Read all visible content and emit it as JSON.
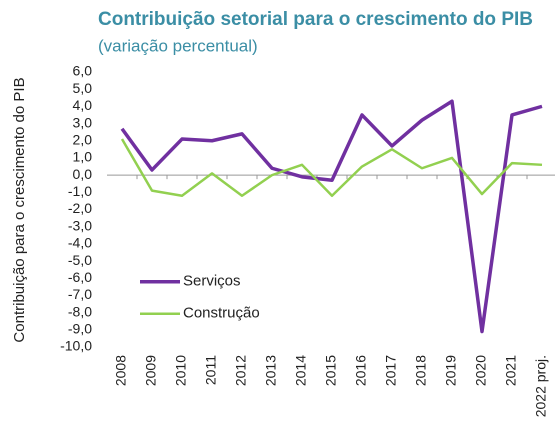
{
  "chart_data": {
    "type": "line",
    "title": "Contribuição setorial para o crescimento do PIB",
    "subtitle": "(variação percentual)",
    "y_label": "Contribuição para o crescimento do PIB",
    "categories": [
      "2008",
      "2009",
      "2010",
      "2011",
      "2012",
      "2013",
      "2014",
      "2015",
      "2016",
      "2017",
      "2018",
      "2019",
      "2020",
      "2021",
      "2022 proj."
    ],
    "series": [
      {
        "name": "Serviços",
        "color": "#7030a0",
        "values": [
          2.7,
          0.3,
          2.1,
          2.0,
          2.4,
          0.4,
          -0.1,
          -0.3,
          3.5,
          1.7,
          3.2,
          4.3,
          -9.1,
          3.5,
          4.0
        ]
      },
      {
        "name": "Construção",
        "color": "#92d050",
        "values": [
          2.1,
          -0.9,
          -1.2,
          0.1,
          -1.2,
          0.0,
          0.6,
          -1.2,
          0.5,
          1.5,
          0.4,
          1.0,
          -1.1,
          0.7,
          0.6
        ]
      }
    ],
    "ylim": [
      -10,
      6
    ],
    "yticks": [
      {
        "value": -10,
        "label": "-10,0"
      },
      {
        "value": -9,
        "label": "-9,0"
      },
      {
        "value": -8,
        "label": "-8,0"
      },
      {
        "value": -7,
        "label": "-7,0"
      },
      {
        "value": -6,
        "label": "-6,0"
      },
      {
        "value": -5,
        "label": "-5,0"
      },
      {
        "value": -4,
        "label": "-4,0"
      },
      {
        "value": -3,
        "label": "-3,0"
      },
      {
        "value": -2,
        "label": "-2,0"
      },
      {
        "value": -1,
        "label": "-1,0"
      },
      {
        "value": 0,
        "label": "0,0"
      },
      {
        "value": 1,
        "label": "1,0"
      },
      {
        "value": 2,
        "label": "2,0"
      },
      {
        "value": 3,
        "label": "3,0"
      },
      {
        "value": 4,
        "label": "4,0"
      },
      {
        "value": 5,
        "label": "5,0"
      },
      {
        "value": 6,
        "label": "6,0"
      }
    ],
    "grid": false,
    "legend": "lower left"
  }
}
